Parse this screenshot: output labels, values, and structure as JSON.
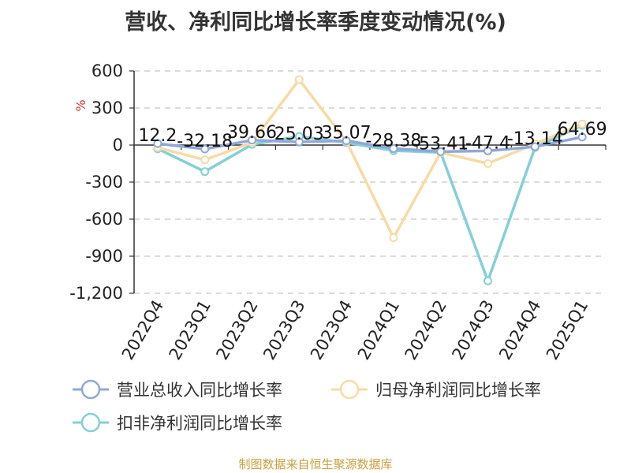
{
  "title": "营收、净利同比增长率季度变动情况(%)",
  "source": "制图数据来自恒生聚源数据库",
  "chart_data": {
    "type": "line",
    "title": "营收、净利同比增长率季度变动情况(%)",
    "y_unit": "%",
    "categories": [
      "2022Q4",
      "2023Q1",
      "2023Q2",
      "2023Q3",
      "2023Q4",
      "2024Q1",
      "2024Q2",
      "2024Q3",
      "2024Q4",
      "2025Q1"
    ],
    "ylim": [
      -1200,
      600
    ],
    "yticks": [
      600,
      300,
      0,
      -300,
      -600,
      -900,
      -1200
    ],
    "ytick_labels": [
      "600",
      "300",
      "0",
      "-300",
      "-600",
      "-900",
      "-1,200"
    ],
    "grid": true,
    "legend_position": "bottom",
    "series": [
      {
        "name": "营业总收入同比增长率",
        "color": "#8fa8d8",
        "values": [
          12.2,
          -32.18,
          39.66,
          25.03,
          35.07,
          -28.38,
          -53.41,
          -47.4,
          -13.14,
          64.69
        ],
        "labels": [
          "12.2",
          "-32.18",
          "39.66",
          "25.03",
          "35.07",
          "-28.38",
          "-53.41",
          "-47.4",
          "-13.14",
          "64.69"
        ]
      },
      {
        "name": "归母净利润同比增长率",
        "color": "#f6dba6",
        "values": [
          -20,
          -120,
          20,
          530,
          30,
          -750,
          -60,
          -150,
          10,
          170
        ]
      },
      {
        "name": "扣非净利润同比增长率",
        "color": "#84d0d6",
        "values": [
          -30,
          -215,
          5,
          70,
          20,
          -45,
          -60,
          -1100,
          -20,
          160
        ]
      }
    ]
  }
}
